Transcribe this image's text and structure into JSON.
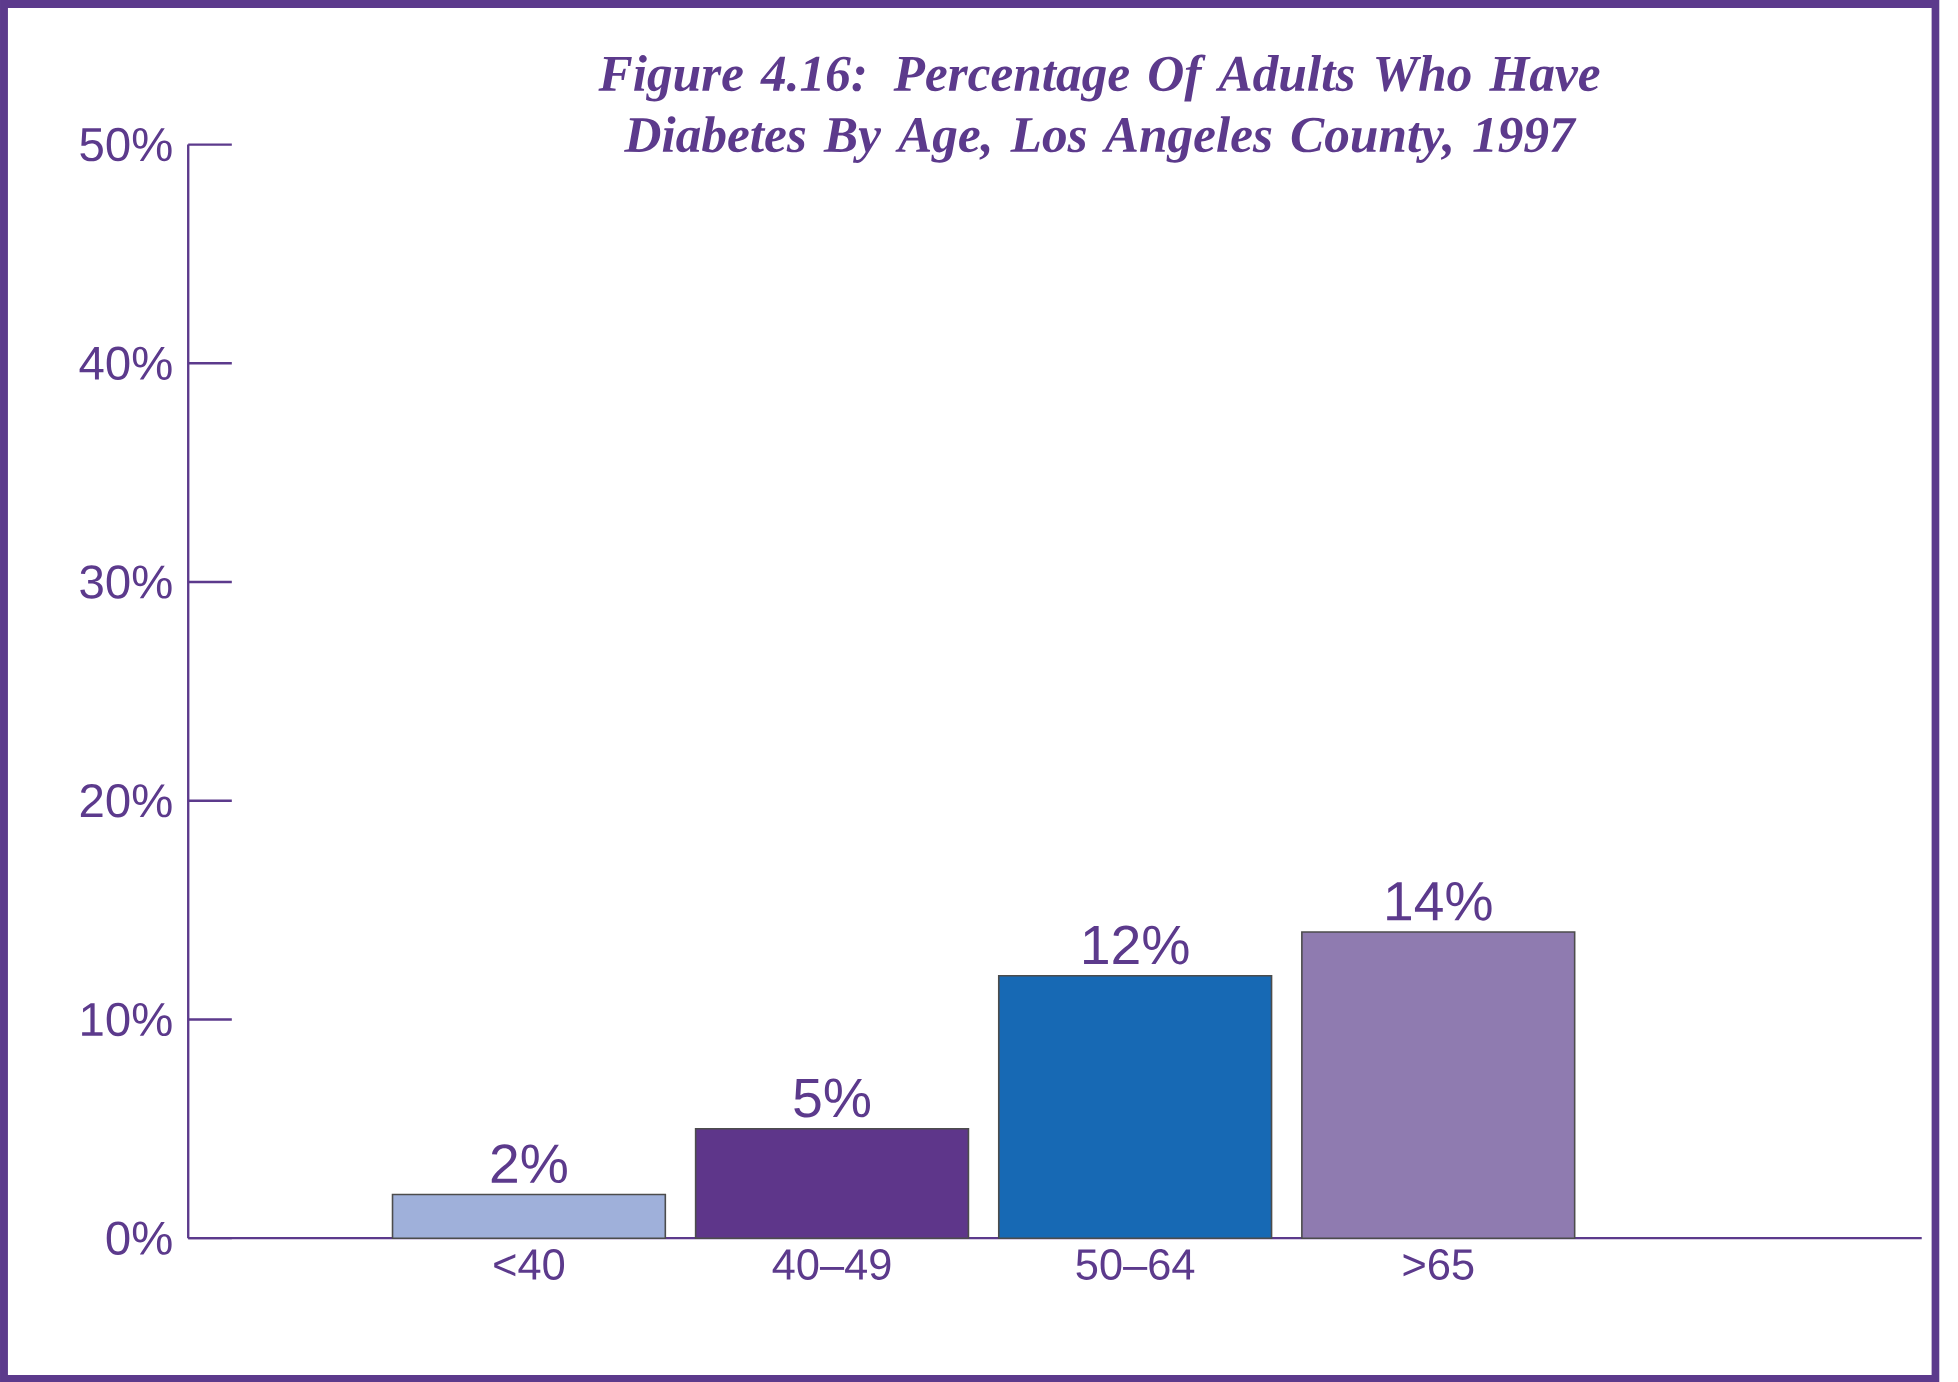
{
  "chart_data": {
    "type": "bar",
    "title": "Figure 4.16: Percentage Of Adults Who Have Diabetes By Age, Los Angeles County, 1997",
    "categories": [
      "<40",
      "40–49",
      "50–64",
      ">65"
    ],
    "values": [
      2,
      5,
      12,
      14
    ],
    "colors": [
      "#9fb0da",
      "#5e368a",
      "#1769b4",
      "#8f7bb0"
    ],
    "value_labels": [
      "2%",
      "5%",
      "12%",
      "14%"
    ],
    "ylim": [
      0,
      50
    ],
    "yticks": [
      {
        "value": 0,
        "label": "0%"
      },
      {
        "value": 10,
        "label": "10%"
      },
      {
        "value": 20,
        "label": "20%"
      },
      {
        "value": 30,
        "label": "30%"
      },
      {
        "value": 40,
        "label": "40%"
      },
      {
        "value": 50,
        "label": "50%"
      }
    ],
    "grid": false
  }
}
